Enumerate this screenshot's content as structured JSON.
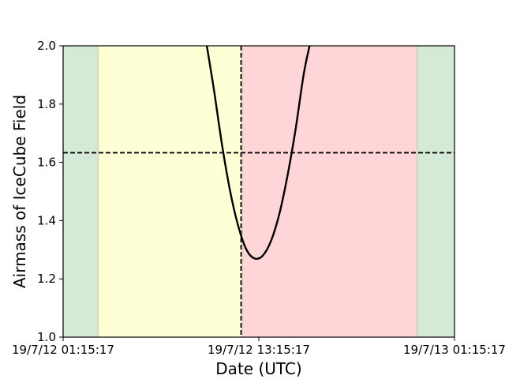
{
  "chart_data": {
    "type": "line",
    "title": "",
    "xlabel": "Date (UTC)",
    "ylabel": "Airmass of IceCube Field",
    "x_ticks": [
      "19/7/12 01:15:17",
      "19/7/12 13:15:17",
      "19/7/13 01:15:17"
    ],
    "xlim": [
      "2019-07-12 01:15:17",
      "2019-07-13 01:15:17"
    ],
    "ylim": [
      1.0,
      2.0
    ],
    "y_ticks": [
      "1.0",
      "1.2",
      "1.4",
      "1.6",
      "1.8",
      "2.0"
    ],
    "grid": false,
    "series": [
      {
        "color": "#000000",
        "x": [
          "2019-07-12 10:04:00",
          "2019-07-12 10:30:00",
          "2019-07-12 11:00:00",
          "2019-07-12 11:30:00",
          "2019-07-12 12:00:00",
          "2019-07-12 12:30:00",
          "2019-07-12 13:00:00",
          "2019-07-12 13:30:00",
          "2019-07-12 14:00:00",
          "2019-07-12 14:30:00",
          "2019-07-12 15:00:00",
          "2019-07-12 15:30:00",
          "2019-07-12 16:00:00",
          "2019-07-12 16:22:00"
        ],
        "y": [
          2.0,
          1.85,
          1.66,
          1.5,
          1.38,
          1.3,
          1.27,
          1.28,
          1.33,
          1.42,
          1.55,
          1.71,
          1.9,
          2.0
        ]
      }
    ],
    "reference_lines": {
      "horizontal_airmass": 1.633,
      "vertical_time": "2019-07-12 12:10:00",
      "style": "dashed",
      "color": "#000000"
    },
    "bands": [
      {
        "start": "2019-07-12 01:15:17",
        "end": "2019-07-12 03:24:00",
        "color": "#d5ead6"
      },
      {
        "start": "2019-07-12 03:24:00",
        "end": "2019-07-12 12:14:00",
        "color": "#ffffd6"
      },
      {
        "start": "2019-07-12 12:14:00",
        "end": "2019-07-12 22:58:00",
        "color": "#ffd6d8"
      },
      {
        "start": "2019-07-12 22:58:00",
        "end": "2019-07-13 01:15:17",
        "color": "#d5ead6"
      }
    ]
  }
}
